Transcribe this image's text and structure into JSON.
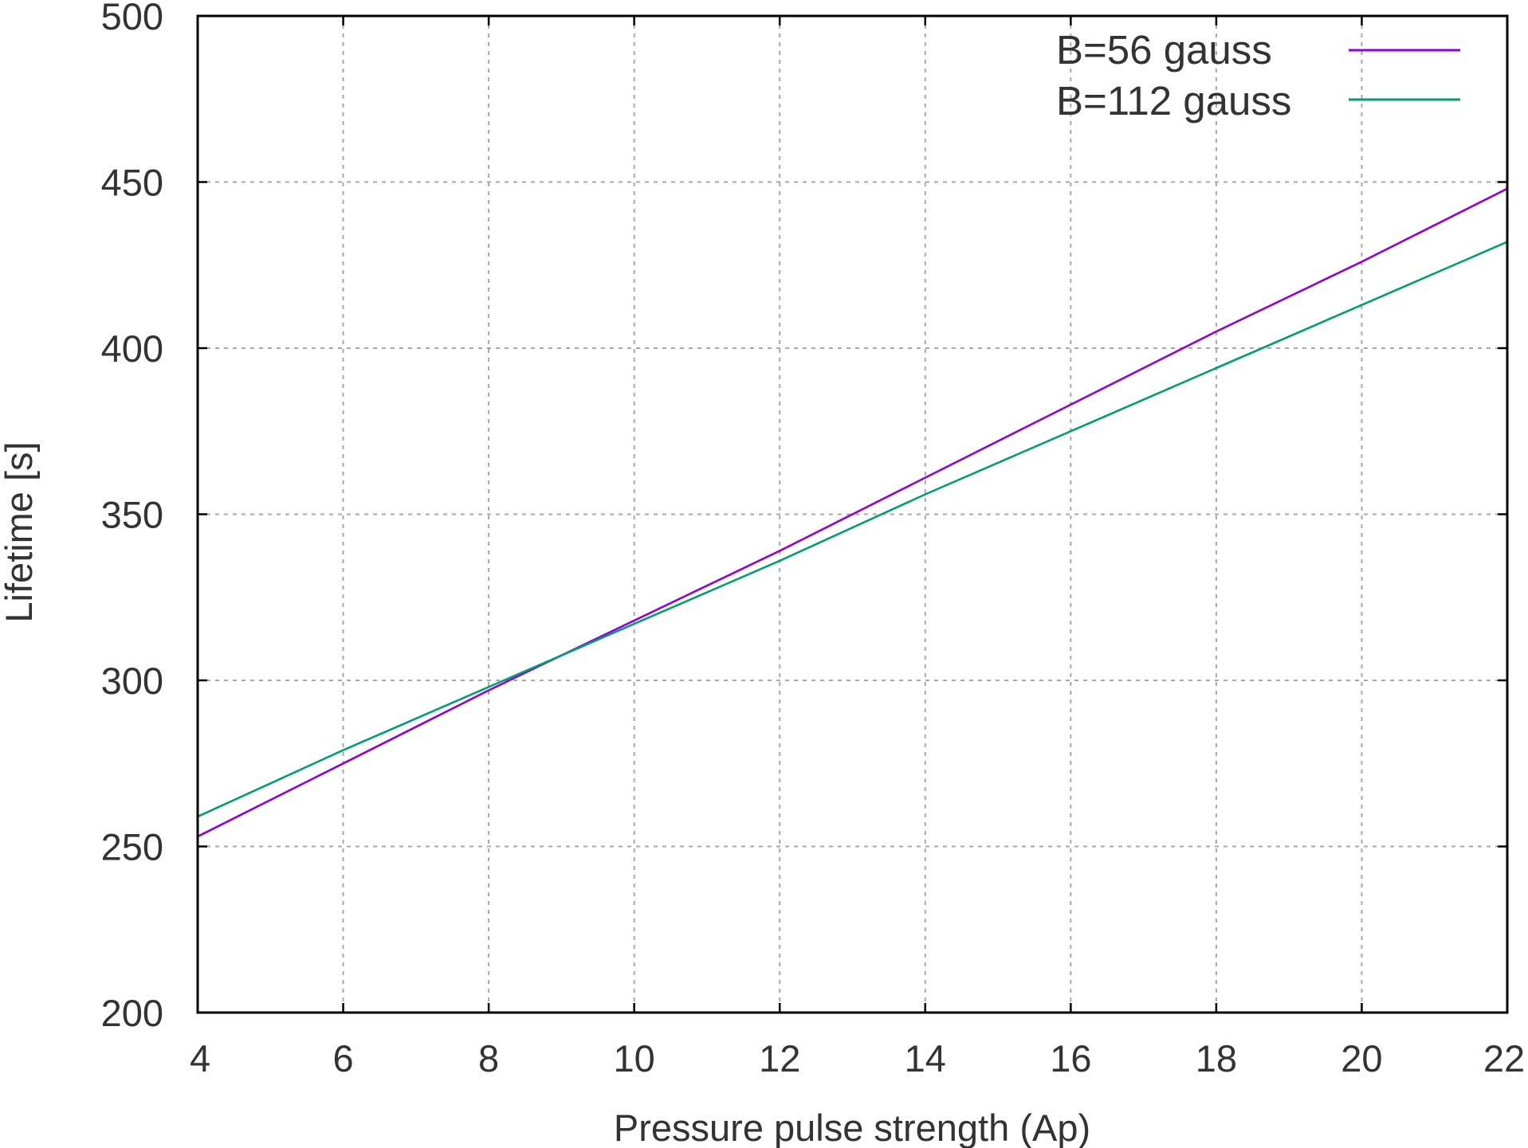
{
  "chart_data": {
    "type": "line",
    "title": "",
    "xlabel": "Pressure pulse strength (Ap)",
    "ylabel": "Lifetime [s]",
    "xlim": [
      4,
      22
    ],
    "ylim": [
      200,
      500
    ],
    "x_ticks": [
      4,
      6,
      8,
      10,
      12,
      14,
      16,
      18,
      20,
      22
    ],
    "x_tick_labels": [
      "4",
      "6",
      "8",
      "10",
      "12",
      "14",
      "16",
      "18",
      "20",
      "22"
    ],
    "y_ticks": [
      200,
      250,
      300,
      350,
      400,
      450,
      500
    ],
    "y_tick_labels": [
      "200",
      "250",
      "300",
      "350",
      "400",
      "450",
      "500"
    ],
    "grid": true,
    "legend_position": "top-right",
    "series": [
      {
        "name": "B=56 gauss",
        "color": "#9400d3",
        "x": [
          4,
          6,
          8,
          10,
          12,
          14,
          16,
          18,
          20,
          22
        ],
        "y": [
          253,
          275,
          297,
          318,
          339,
          361,
          383,
          405,
          426,
          448
        ]
      },
      {
        "name": "B=112 gauss",
        "color": "#009e73",
        "x": [
          4,
          6,
          8,
          10,
          12,
          14,
          16,
          18,
          20,
          22
        ],
        "y": [
          259,
          279,
          298,
          317,
          336,
          356,
          375,
          394,
          413,
          432
        ]
      }
    ]
  }
}
